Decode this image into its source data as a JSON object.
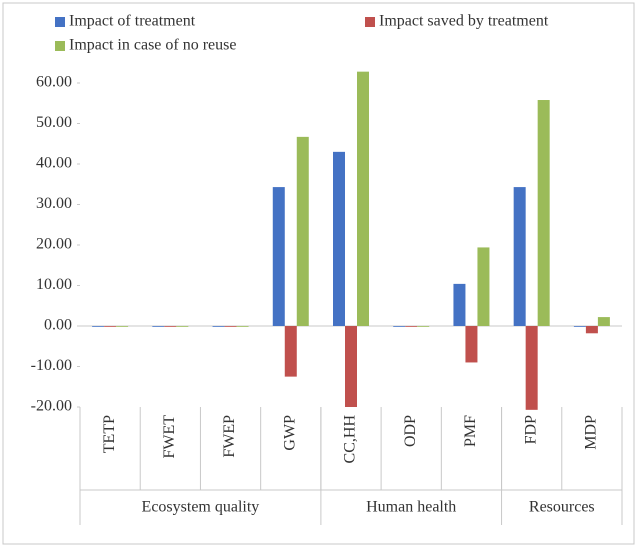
{
  "chart_data": {
    "type": "bar",
    "categories": [
      "TETP",
      "FWET",
      "FWEP",
      "GWP",
      "CC,HH",
      "ODP",
      "PMF",
      "FDP",
      "MDP"
    ],
    "groups": [
      {
        "name": "Ecosystem quality",
        "size": 4
      },
      {
        "name": "Human health",
        "size": 3
      },
      {
        "name": "Resources",
        "size": 2
      }
    ],
    "series": [
      {
        "name": "Impact of treatment",
        "color": "#4472c4",
        "values": [
          0,
          0,
          0,
          34.3,
          43.0,
          0,
          10.4,
          34.3,
          0
        ]
      },
      {
        "name": "Impact saved by treatment",
        "color": "#c0504d",
        "values": [
          -0.2,
          -0.2,
          -0.2,
          -12.5,
          -20,
          -0.2,
          -9,
          -20.7,
          -1.8
        ]
      },
      {
        "name": "Impact in case of no reuse",
        "color": "#9bbb59",
        "values": [
          0,
          0,
          0,
          46.7,
          62.8,
          0,
          19.4,
          55.8,
          2.2
        ]
      }
    ],
    "ylim": [
      -20,
      65
    ],
    "yticks": [
      {
        "value": -20,
        "label": "-20.00"
      },
      {
        "value": -10,
        "label": "-10.00"
      },
      {
        "value": 0,
        "label": "0.00"
      },
      {
        "value": 10,
        "label": "10.00"
      },
      {
        "value": 20,
        "label": "20.00"
      },
      {
        "value": 30,
        "label": "30.00"
      },
      {
        "value": 40,
        "label": "40.00"
      },
      {
        "value": 50,
        "label": "50.00"
      },
      {
        "value": 60,
        "label": "60.00"
      }
    ],
    "grid": false,
    "legend": "top"
  }
}
